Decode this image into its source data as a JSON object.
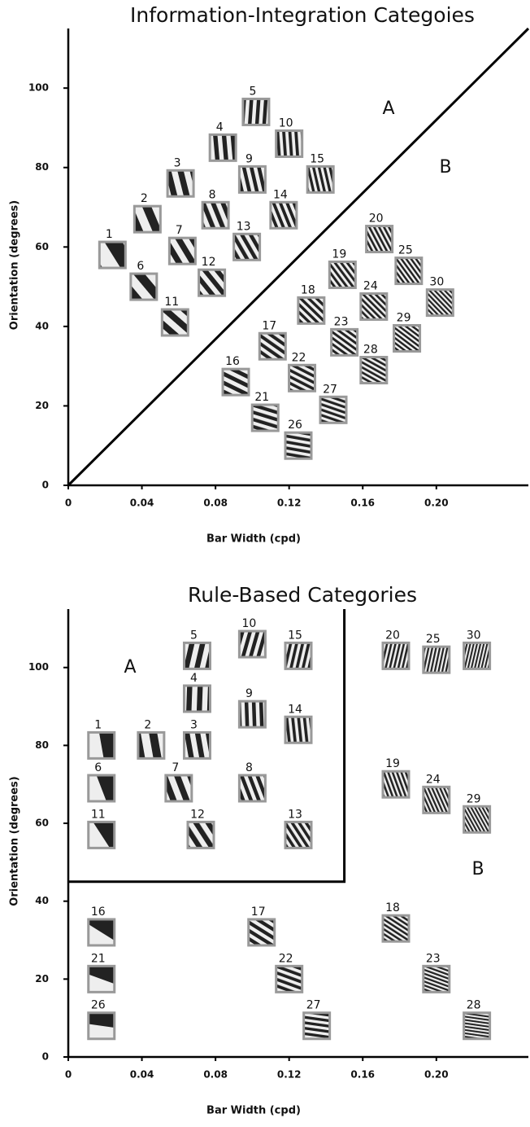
{
  "chart_data": [
    {
      "type": "scatter",
      "title": "Information-Integration Categoies",
      "x_label": "Bar Width (cpd)",
      "y_label": "Orientation (degrees)",
      "xlim": [
        0,
        0.25
      ],
      "ylim": [
        0,
        115
      ],
      "xticks": [
        0,
        0.04,
        0.08,
        0.12,
        0.16,
        {
          "value": 0.2,
          "label": "0.20"
        }
      ],
      "yticks": [
        0,
        20,
        40,
        60,
        80,
        100
      ],
      "point_labels": [
        1,
        2,
        3,
        4,
        5,
        6,
        7,
        8,
        9,
        10,
        11,
        12,
        13,
        14,
        15,
        16,
        17,
        18,
        19,
        20,
        21,
        22,
        23,
        24,
        25,
        26,
        27,
        28,
        29,
        30
      ],
      "x": [
        0.024,
        0.043,
        0.061,
        0.084,
        0.102,
        0.041,
        0.062,
        0.08,
        0.1,
        0.12,
        0.058,
        0.078,
        0.097,
        0.117,
        0.137,
        0.091,
        0.111,
        0.132,
        0.149,
        0.169,
        0.107,
        0.127,
        0.15,
        0.166,
        0.185,
        0.125,
        0.144,
        0.166,
        0.184,
        0.202
      ],
      "y": [
        58,
        67,
        76,
        85,
        94,
        50,
        59,
        68,
        77,
        86,
        41,
        51,
        60,
        68,
        77,
        26,
        35,
        44,
        53,
        62,
        17,
        27,
        36,
        45,
        54,
        10,
        19,
        29,
        37,
        46
      ],
      "boundary": {
        "x": [
          0,
          0.25
        ],
        "y": [
          0,
          115
        ]
      },
      "annotations": [
        "A",
        "B"
      ]
    },
    {
      "type": "scatter",
      "title": "Rule-Based Categories",
      "x_label": "Bar Width (cpd)",
      "y_label": "Orientation (degrees)",
      "xlim": [
        0,
        0.25
      ],
      "ylim": [
        0,
        115
      ],
      "xticks": [
        0,
        0.04,
        0.08,
        0.12,
        0.16,
        {
          "value": 0.2,
          "label": "0.20"
        }
      ],
      "yticks": [
        0,
        20,
        40,
        60,
        80,
        100
      ],
      "point_labels": [
        1,
        2,
        3,
        4,
        5,
        6,
        7,
        8,
        9,
        10,
        11,
        12,
        13,
        14,
        15,
        16,
        17,
        18,
        19,
        20,
        21,
        22,
        23,
        24,
        25,
        26,
        27,
        28,
        29,
        30
      ],
      "x": [
        0.018,
        0.045,
        0.07,
        0.07,
        0.07,
        0.018,
        0.06,
        0.1,
        0.1,
        0.1,
        0.018,
        0.072,
        0.125,
        0.125,
        0.125,
        0.018,
        0.105,
        0.178,
        0.178,
        0.178,
        0.018,
        0.12,
        0.2,
        0.2,
        0.2,
        0.018,
        0.135,
        0.222,
        0.222,
        0.222
      ],
      "y": [
        80,
        80,
        80,
        92,
        103,
        69,
        69,
        69,
        88,
        106,
        57,
        57,
        57,
        84,
        103,
        32,
        32,
        33,
        70,
        103,
        20,
        20,
        20,
        66,
        102,
        8,
        8,
        8,
        61,
        103
      ],
      "boundary": {
        "x": [
          0,
          0.15,
          0.15
        ],
        "y": [
          45,
          45,
          115
        ]
      },
      "annotations": [
        "A",
        "B"
      ]
    }
  ]
}
